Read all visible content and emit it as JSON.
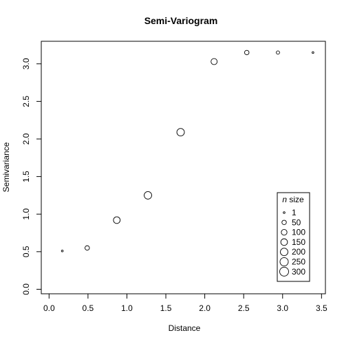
{
  "chart_data": {
    "type": "scatter",
    "title": "Semi-Variogram",
    "xlabel": "Distance",
    "ylabel": "Semivariance",
    "xlim": [
      -0.1,
      3.55
    ],
    "ylim": [
      -0.06,
      3.3
    ],
    "xticks": [
      "0.0",
      "0.5",
      "1.0",
      "1.5",
      "2.0",
      "2.5",
      "3.0",
      "3.5"
    ],
    "yticks": [
      "0.0",
      "0.5",
      "1.0",
      "1.5",
      "2.0",
      "2.5",
      "3.0"
    ],
    "points": [
      {
        "x": 0.17,
        "y": 0.51,
        "n": 1
      },
      {
        "x": 0.49,
        "y": 0.55,
        "n": 50
      },
      {
        "x": 0.87,
        "y": 0.92,
        "n": 150
      },
      {
        "x": 1.27,
        "y": 1.25,
        "n": 200
      },
      {
        "x": 1.69,
        "y": 2.09,
        "n": 200
      },
      {
        "x": 2.12,
        "y": 3.03,
        "n": 120
      },
      {
        "x": 2.54,
        "y": 3.15,
        "n": 50
      },
      {
        "x": 2.94,
        "y": 3.15,
        "n": 20
      },
      {
        "x": 3.39,
        "y": 3.15,
        "n": 1
      }
    ],
    "legend": {
      "placement": "bottom-right",
      "title_italic": "n",
      "title_rest": " size",
      "entries": [
        {
          "label": "1",
          "n": 1
        },
        {
          "label": "50",
          "n": 50
        },
        {
          "label": "100",
          "n": 100
        },
        {
          "label": "150",
          "n": 150
        },
        {
          "label": "200",
          "n": 200
        },
        {
          "label": "250",
          "n": 250
        },
        {
          "label": "300",
          "n": 300
        }
      ]
    }
  }
}
